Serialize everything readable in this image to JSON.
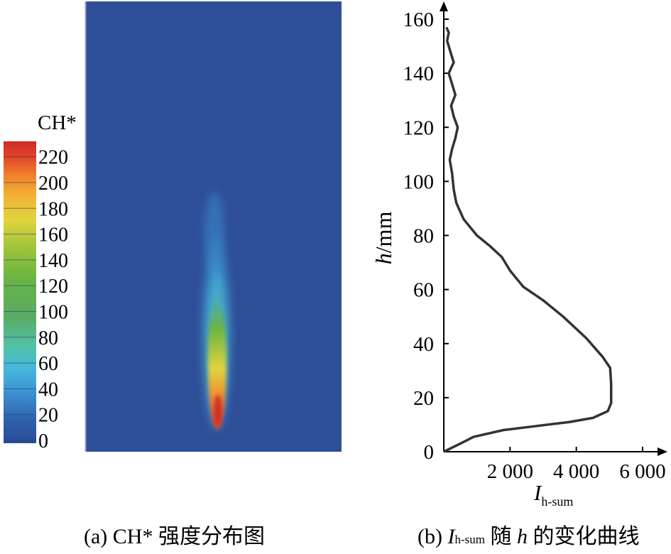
{
  "panel_a": {
    "colorbar_title": "CH*",
    "colorbar_ticks": [
      "0",
      "20",
      "40",
      "60",
      "80",
      "100",
      "120",
      "140",
      "160",
      "180",
      "200",
      "220"
    ],
    "colormap": [
      "#2a4b96",
      "#2f62ad",
      "#3a8ecf",
      "#45b6dc",
      "#52c2a8",
      "#5aa965",
      "#6bb542",
      "#a7c63a",
      "#e1d43c",
      "#f2b233",
      "#ef7f2c",
      "#e3442a",
      "#cc2a26"
    ],
    "background_color": "#2e4e98",
    "caption": "(a) CH* 强度分布图"
  },
  "panel_b": {
    "caption_prefix": "(b) ",
    "caption_var": "I",
    "caption_sub": "h-sum",
    "caption_suffix_1": " 随 ",
    "caption_h": "h",
    "caption_suffix_2": " 的变化曲线"
  },
  "chart_data": {
    "type": "line",
    "xlabel_main": "I",
    "xlabel_sub": "h-sum",
    "ylabel_var": "h",
    "ylabel_unit": "/mm",
    "xlim": [
      0,
      6000
    ],
    "ylim": [
      0,
      160
    ],
    "x_ticks": [
      "2 000",
      "4 000",
      "6 000"
    ],
    "y_ticks": [
      "0",
      "20",
      "40",
      "60",
      "80",
      "100",
      "120",
      "140",
      "160"
    ],
    "grid": false,
    "series": [
      {
        "color": "#333333",
        "points": [
          [
            0,
            0
          ],
          [
            500,
            3
          ],
          [
            900,
            5.5
          ],
          [
            1800,
            8
          ],
          [
            2800,
            9.5
          ],
          [
            3800,
            11
          ],
          [
            4500,
            12.5
          ],
          [
            4950,
            15
          ],
          [
            5050,
            18
          ],
          [
            5050,
            25
          ],
          [
            5020,
            31
          ],
          [
            4800,
            35
          ],
          [
            4300,
            42
          ],
          [
            3600,
            50
          ],
          [
            3000,
            56
          ],
          [
            2400,
            61
          ],
          [
            2000,
            67
          ],
          [
            1750,
            72
          ],
          [
            1400,
            76
          ],
          [
            1000,
            80
          ],
          [
            600,
            86
          ],
          [
            380,
            92
          ],
          [
            300,
            97
          ],
          [
            250,
            103
          ],
          [
            180,
            108
          ],
          [
            250,
            112
          ],
          [
            350,
            116
          ],
          [
            420,
            120
          ],
          [
            300,
            124
          ],
          [
            220,
            128
          ],
          [
            350,
            132
          ],
          [
            250,
            136
          ],
          [
            150,
            140
          ],
          [
            300,
            144
          ],
          [
            200,
            148
          ],
          [
            100,
            152
          ],
          [
            150,
            155
          ],
          [
            80,
            157
          ]
        ]
      }
    ]
  }
}
